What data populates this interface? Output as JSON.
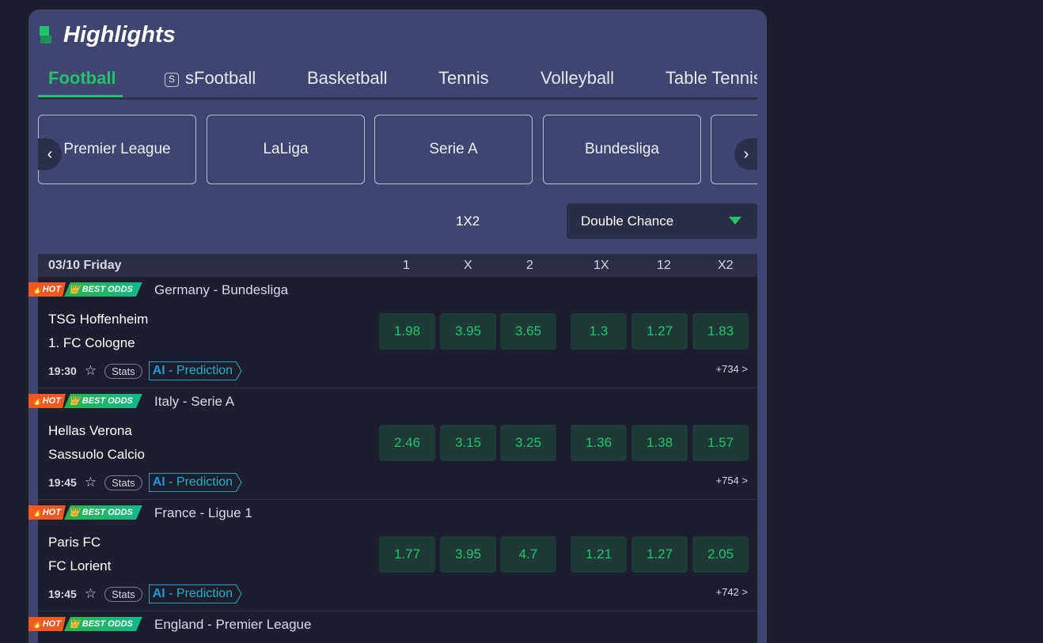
{
  "title": "Highlights",
  "tabs": [
    "Football",
    "sFootball",
    "Basketball",
    "Tennis",
    "Volleyball",
    "Table Tennis"
  ],
  "leagues": [
    "Premier League",
    "LaLiga",
    "Serie A",
    "Bundesliga",
    ""
  ],
  "market_label": "1X2",
  "market_dropdown": "Double Chance",
  "date_header": "03/10 Friday",
  "columns": [
    "1",
    "X",
    "2",
    "1X",
    "12",
    "X2"
  ],
  "badges": {
    "hot": "HOT",
    "best": "BEST ODDS"
  },
  "stats_label": "Stats",
  "ai_label": "AI",
  "prediction_label": " - Prediction",
  "colors": {
    "accent": "#22c36a",
    "card": "#404470",
    "ai": "#1e9ad6"
  },
  "matches": [
    {
      "league": "Germany - Bundesliga",
      "home": "TSG Hoffenheim",
      "away": "1. FC Cologne",
      "time": "19:30",
      "odds": [
        "1.98",
        "3.95",
        "3.65",
        "1.3",
        "1.27",
        "1.83"
      ],
      "more": "+734 >"
    },
    {
      "league": "Italy - Serie A",
      "home": "Hellas Verona",
      "away": "Sassuolo Calcio",
      "time": "19:45",
      "odds": [
        "2.46",
        "3.15",
        "3.25",
        "1.36",
        "1.38",
        "1.57"
      ],
      "more": "+754 >"
    },
    {
      "league": "France - Ligue 1",
      "home": "Paris FC",
      "away": "FC Lorient",
      "time": "19:45",
      "odds": [
        "1.77",
        "3.95",
        "4.7",
        "1.21",
        "1.27",
        "2.05"
      ],
      "more": "+742 >"
    },
    {
      "league": "England - Premier League",
      "home": "",
      "away": "",
      "time": "",
      "odds": [],
      "more": ""
    }
  ]
}
